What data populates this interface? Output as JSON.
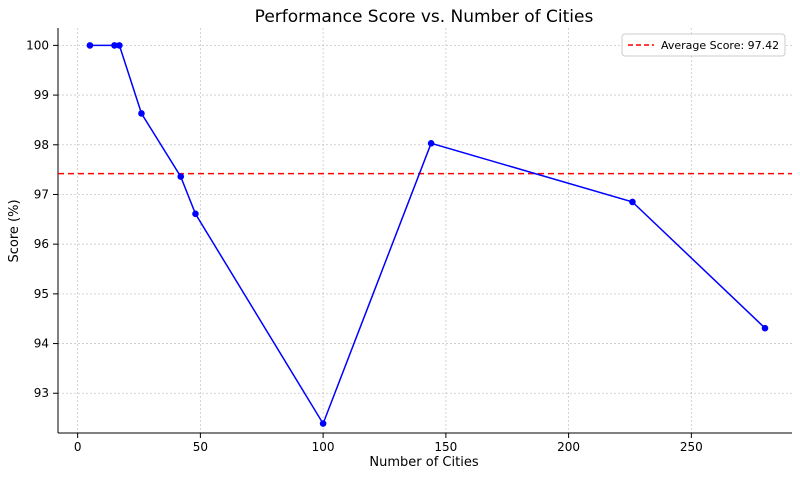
{
  "chart_data": {
    "type": "line",
    "title": "Performance Score vs. Number of Cities",
    "xlabel": "Number of Cities",
    "ylabel": "Score (%)",
    "xlim": [
      -8,
      291
    ],
    "ylim": [
      92.2,
      100.35
    ],
    "xticks": [
      0,
      50,
      100,
      150,
      200,
      250
    ],
    "yticks": [
      93,
      94,
      95,
      96,
      97,
      98,
      99,
      100
    ],
    "grid": true,
    "legend_position": "top-right",
    "series": [
      {
        "color": "#0000ff",
        "marker": "circle",
        "points": [
          {
            "x": 5,
            "y": 100
          },
          {
            "x": 15,
            "y": 100
          },
          {
            "x": 17,
            "y": 100
          },
          {
            "x": 26,
            "y": 98.63
          },
          {
            "x": 42,
            "y": 97.36
          },
          {
            "x": 48,
            "y": 96.61
          },
          {
            "x": 100,
            "y": 92.39
          },
          {
            "x": 144,
            "y": 98.03
          },
          {
            "x": 226,
            "y": 96.85
          },
          {
            "x": 280,
            "y": 94.31
          }
        ]
      }
    ],
    "reference_lines": [
      {
        "name": "Average Score: 97.42",
        "y": 97.42,
        "color": "#ff0000",
        "style": "dashed"
      }
    ]
  }
}
